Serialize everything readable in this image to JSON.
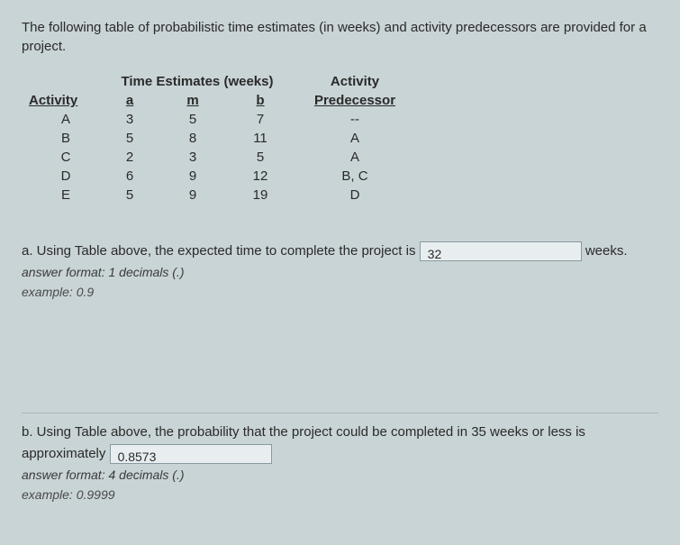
{
  "intro": "The following table of probabilistic time estimates (in weeks) and activity predecessors are provided for a project.",
  "headers": {
    "time_estimates": "Time Estimates (weeks)",
    "activity_pred": "Activity",
    "activity": "Activity",
    "a": "a",
    "m": "m",
    "b": "b",
    "predecessor": "Predecessor"
  },
  "rows": [
    {
      "activity": "A",
      "a": "3",
      "m": "5",
      "b": "7",
      "pred": "--"
    },
    {
      "activity": "B",
      "a": "5",
      "m": "8",
      "b": "11",
      "pred": "A"
    },
    {
      "activity": "C",
      "a": "2",
      "m": "3",
      "b": "5",
      "pred": "A"
    },
    {
      "activity": "D",
      "a": "6",
      "m": "9",
      "b": "12",
      "pred": "B, C"
    },
    {
      "activity": "E",
      "a": "5",
      "m": "9",
      "b": "19",
      "pred": "D"
    }
  ],
  "qa": {
    "prefix": "a. Using Table above, the expected time to complete the project is",
    "value": "32",
    "suffix": "weeks.",
    "format": "answer format: 1 decimals (.)",
    "example": "example: 0.9"
  },
  "qb": {
    "prefix": "b. Using Table above, the probability that the project could be completed in 35 weeks or less is approximately",
    "value": "0.8573",
    "format": "answer format: 4 decimals (.)",
    "example": "example: 0.9999"
  },
  "style": {
    "bg": "#c9d4d6",
    "text": "#2a2a2a",
    "input_bg": "#e8eef0",
    "input_border": "#8a9aa0",
    "fontsize_body": 15,
    "fontsize_input": 14
  }
}
